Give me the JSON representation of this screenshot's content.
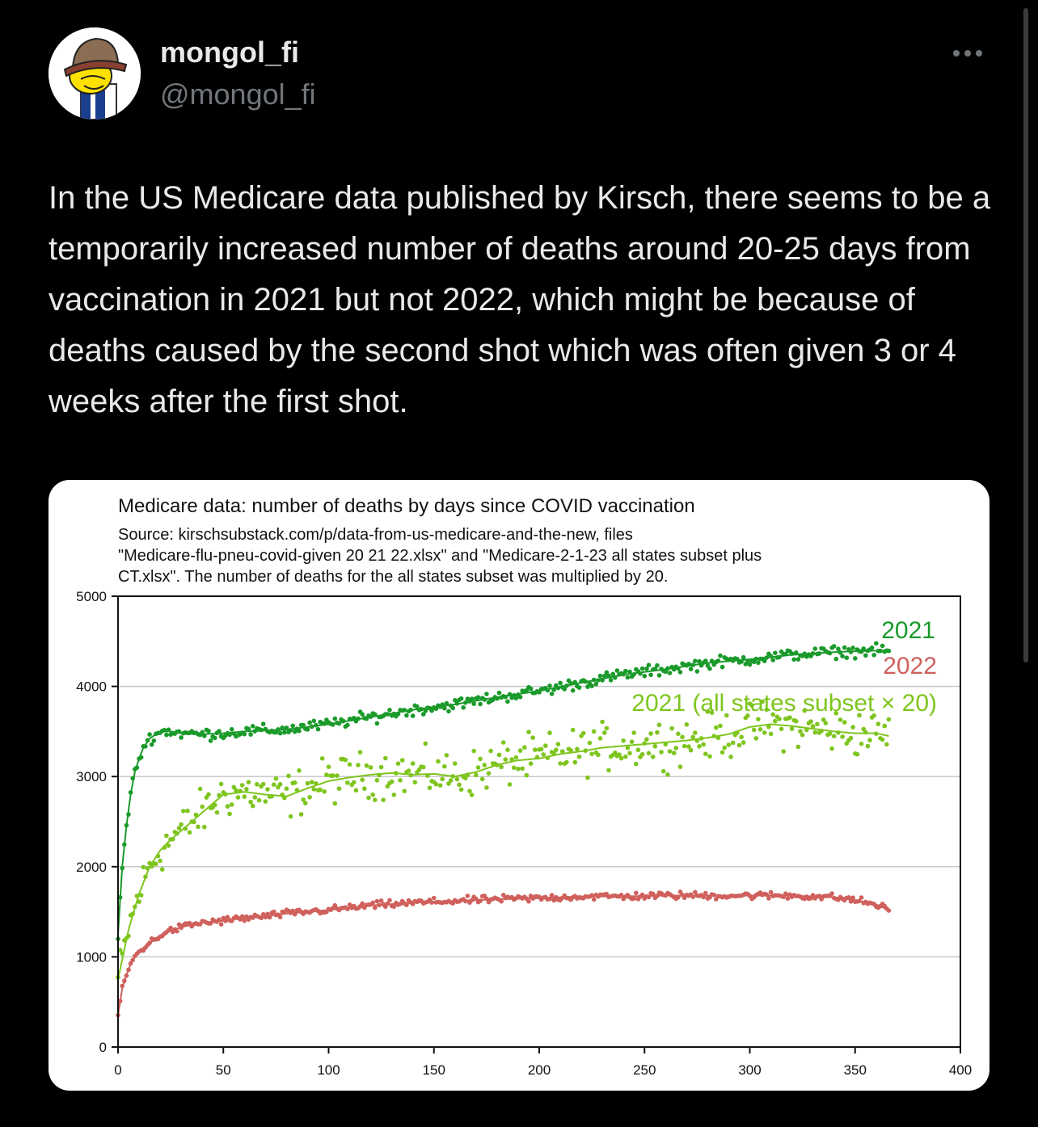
{
  "author": {
    "display_name": "mongol_fi",
    "handle": "@mongol_fi",
    "avatar_icon": "cartoon-character-avatar",
    "more_icon": "more-horizontal-icon"
  },
  "tweet": {
    "text": "In the US Medicare data published by Kirsch, there seems to be a temporarily increased number of deaths around 20-25 days from vaccination in 2021 but not 2022, which might be because of deaths caused by the second shot which was often given 3 or 4 weeks after the first shot."
  },
  "colors": {
    "background": "#000000",
    "text": "#e7e9ea",
    "muted": "#71767b",
    "series_2021": "#1a9a2a",
    "series_2022": "#d0605c",
    "series_subset": "#7ec51e"
  },
  "chart_data": {
    "type": "scatter",
    "title": "Medicare data: number of deaths by days since COVID vaccination",
    "source_lines": [
      "Source: kirschsubstack.com/p/data-from-us-medicare-and-the-new, files",
      "\"Medicare-flu-pneu-covid-given 20 21 22.xlsx\" and \"Medicare-2-1-23 all states subset plus",
      "CT.xlsx\". The number of deaths for the all states subset was multiplied by 20."
    ],
    "xlim": [
      0,
      400
    ],
    "ylim": [
      0,
      5000
    ],
    "x_ticks": [
      0,
      50,
      100,
      150,
      200,
      250,
      300,
      350,
      400
    ],
    "y_ticks": [
      0,
      1000,
      2000,
      3000,
      4000,
      5000
    ],
    "grid": "horizontal",
    "x_range_of_data": [
      0,
      366
    ],
    "series": [
      {
        "name": "2021",
        "color": "#1a9a2a",
        "trend": {
          "x": [
            0,
            2,
            4,
            6,
            8,
            10,
            12,
            15,
            18,
            21,
            25,
            30,
            40,
            50,
            60,
            70,
            80,
            100,
            120,
            140,
            160,
            180,
            200,
            220,
            240,
            260,
            280,
            300,
            320,
            340,
            350,
            366
          ],
          "y": [
            1250,
            2000,
            2450,
            2800,
            3050,
            3200,
            3320,
            3420,
            3470,
            3500,
            3500,
            3480,
            3470,
            3480,
            3500,
            3510,
            3520,
            3580,
            3660,
            3740,
            3800,
            3880,
            3950,
            4040,
            4130,
            4190,
            4260,
            4300,
            4350,
            4380,
            4390,
            4400
          ]
        },
        "noise": 55
      },
      {
        "name": "2022",
        "color": "#d0605c",
        "trend": {
          "x": [
            0,
            2,
            4,
            6,
            8,
            10,
            13,
            16,
            20,
            25,
            30,
            40,
            50,
            60,
            70,
            80,
            100,
            120,
            140,
            160,
            180,
            200,
            220,
            240,
            260,
            280,
            300,
            320,
            340,
            350,
            360,
            366
          ],
          "y": [
            350,
            650,
            800,
            920,
            1000,
            1060,
            1120,
            1170,
            1240,
            1290,
            1330,
            1380,
            1400,
            1430,
            1450,
            1480,
            1520,
            1570,
            1600,
            1620,
            1640,
            1650,
            1670,
            1670,
            1680,
            1680,
            1680,
            1680,
            1660,
            1630,
            1580,
            1520
          ]
        },
        "noise": 35
      },
      {
        "name": "2021 (all states subset × 20)",
        "color": "#7ec51e",
        "trend": {
          "x": [
            0,
            5,
            10,
            15,
            20,
            25,
            30,
            40,
            50,
            60,
            70,
            80,
            90,
            100,
            110,
            120,
            130,
            140,
            150,
            160,
            170,
            180,
            190,
            200,
            210,
            220,
            230,
            240,
            250,
            260,
            270,
            280,
            290,
            300,
            310,
            320,
            330,
            340,
            350,
            360,
            366
          ],
          "y": [
            750,
            1300,
            1700,
            2000,
            2180,
            2300,
            2400,
            2600,
            2800,
            2830,
            2800,
            2780,
            2870,
            2950,
            2990,
            3020,
            3040,
            3020,
            3030,
            3000,
            3050,
            3130,
            3180,
            3200,
            3250,
            3280,
            3320,
            3340,
            3360,
            3380,
            3400,
            3430,
            3470,
            3550,
            3580,
            3560,
            3530,
            3500,
            3480,
            3480,
            3450
          ]
        },
        "noise": 220
      }
    ]
  }
}
